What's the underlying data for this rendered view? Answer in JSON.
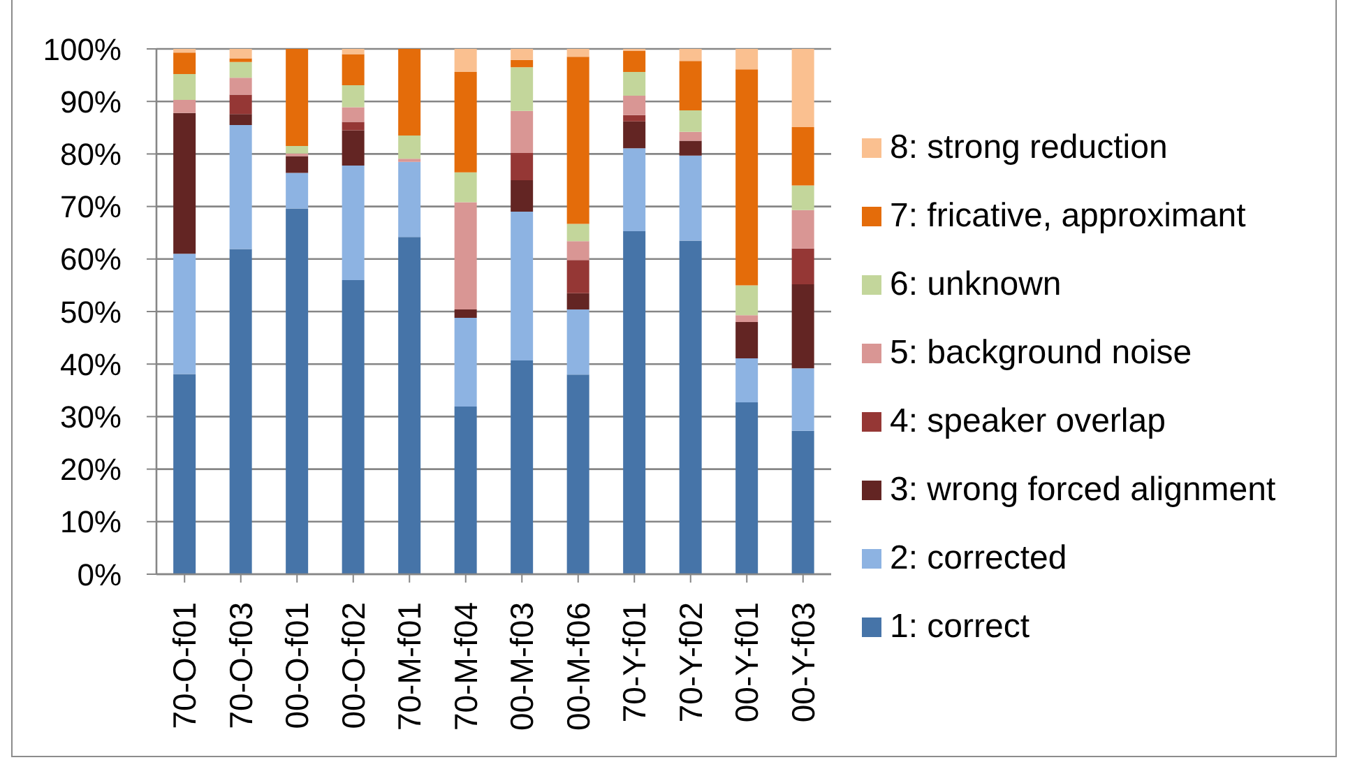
{
  "chart_data": {
    "type": "bar",
    "stacked": true,
    "categories": [
      "70-O-f01",
      "70-O-f03",
      "00-O-f01",
      "00-O-f02",
      "70-M-f01",
      "70-M-f04",
      "00-M-f03",
      "00-M-f06",
      "70-Y-f01",
      "70-Y-f02",
      "00-Y-f01",
      "00-Y-f03"
    ],
    "series": [
      {
        "name": "1: correct",
        "color": "#4674a8",
        "values": [
          38.1,
          61.9,
          69.6,
          56.0,
          64.2,
          31.9,
          40.7,
          38.0,
          65.3,
          63.5,
          32.7,
          27.3
        ]
      },
      {
        "name": "2: corrected",
        "color": "#8db3e2",
        "values": [
          22.9,
          23.6,
          6.8,
          21.8,
          14.3,
          16.9,
          28.3,
          12.4,
          15.8,
          16.2,
          8.4,
          11.9
        ]
      },
      {
        "name": "3: wrong forced alignment",
        "color": "#632523",
        "values": [
          26.8,
          2.1,
          3.2,
          6.7,
          0,
          1.6,
          6.0,
          3.1,
          5.1,
          2.8,
          6.9,
          16.0
        ]
      },
      {
        "name": "4: speaker overlap",
        "color": "#953735",
        "values": [
          0,
          3.7,
          0,
          1.6,
          0,
          0,
          5.2,
          6.3,
          1.2,
          0,
          0,
          6.8
        ]
      },
      {
        "name": "5: background noise",
        "color": "#d99694",
        "values": [
          2.5,
          3.2,
          0.5,
          2.8,
          0.6,
          20.4,
          8.0,
          3.6,
          3.7,
          1.7,
          1.3,
          7.3
        ]
      },
      {
        "name": "6: unknown",
        "color": "#c3d69b",
        "values": [
          4.9,
          3.0,
          1.4,
          4.2,
          4.4,
          5.7,
          8.3,
          3.3,
          4.5,
          4.1,
          5.7,
          4.7
        ]
      },
      {
        "name": "7: fricative, approximant",
        "color": "#e46c0a",
        "values": [
          4.1,
          0.7,
          18.5,
          5.9,
          16.5,
          19.1,
          1.4,
          31.8,
          4.0,
          9.4,
          41.1,
          11.1
        ]
      },
      {
        "name": "8: strong reduction",
        "color": "#fac090",
        "values": [
          0.7,
          1.8,
          0,
          1.0,
          0,
          4.4,
          2.1,
          1.5,
          0.4,
          2.3,
          3.9,
          14.9
        ]
      }
    ],
    "ylim": [
      0,
      100
    ],
    "yticks": [
      {
        "value": 0,
        "label": "0%"
      },
      {
        "value": 10,
        "label": "10%"
      },
      {
        "value": 20,
        "label": "20%"
      },
      {
        "value": 30,
        "label": "30%"
      },
      {
        "value": 40,
        "label": "40%"
      },
      {
        "value": 50,
        "label": "50%"
      },
      {
        "value": 60,
        "label": "60%"
      },
      {
        "value": 70,
        "label": "70%"
      },
      {
        "value": 80,
        "label": "80%"
      },
      {
        "value": 90,
        "label": "90%"
      },
      {
        "value": 100,
        "label": "100%"
      }
    ],
    "grid": "y",
    "legend": "right"
  }
}
